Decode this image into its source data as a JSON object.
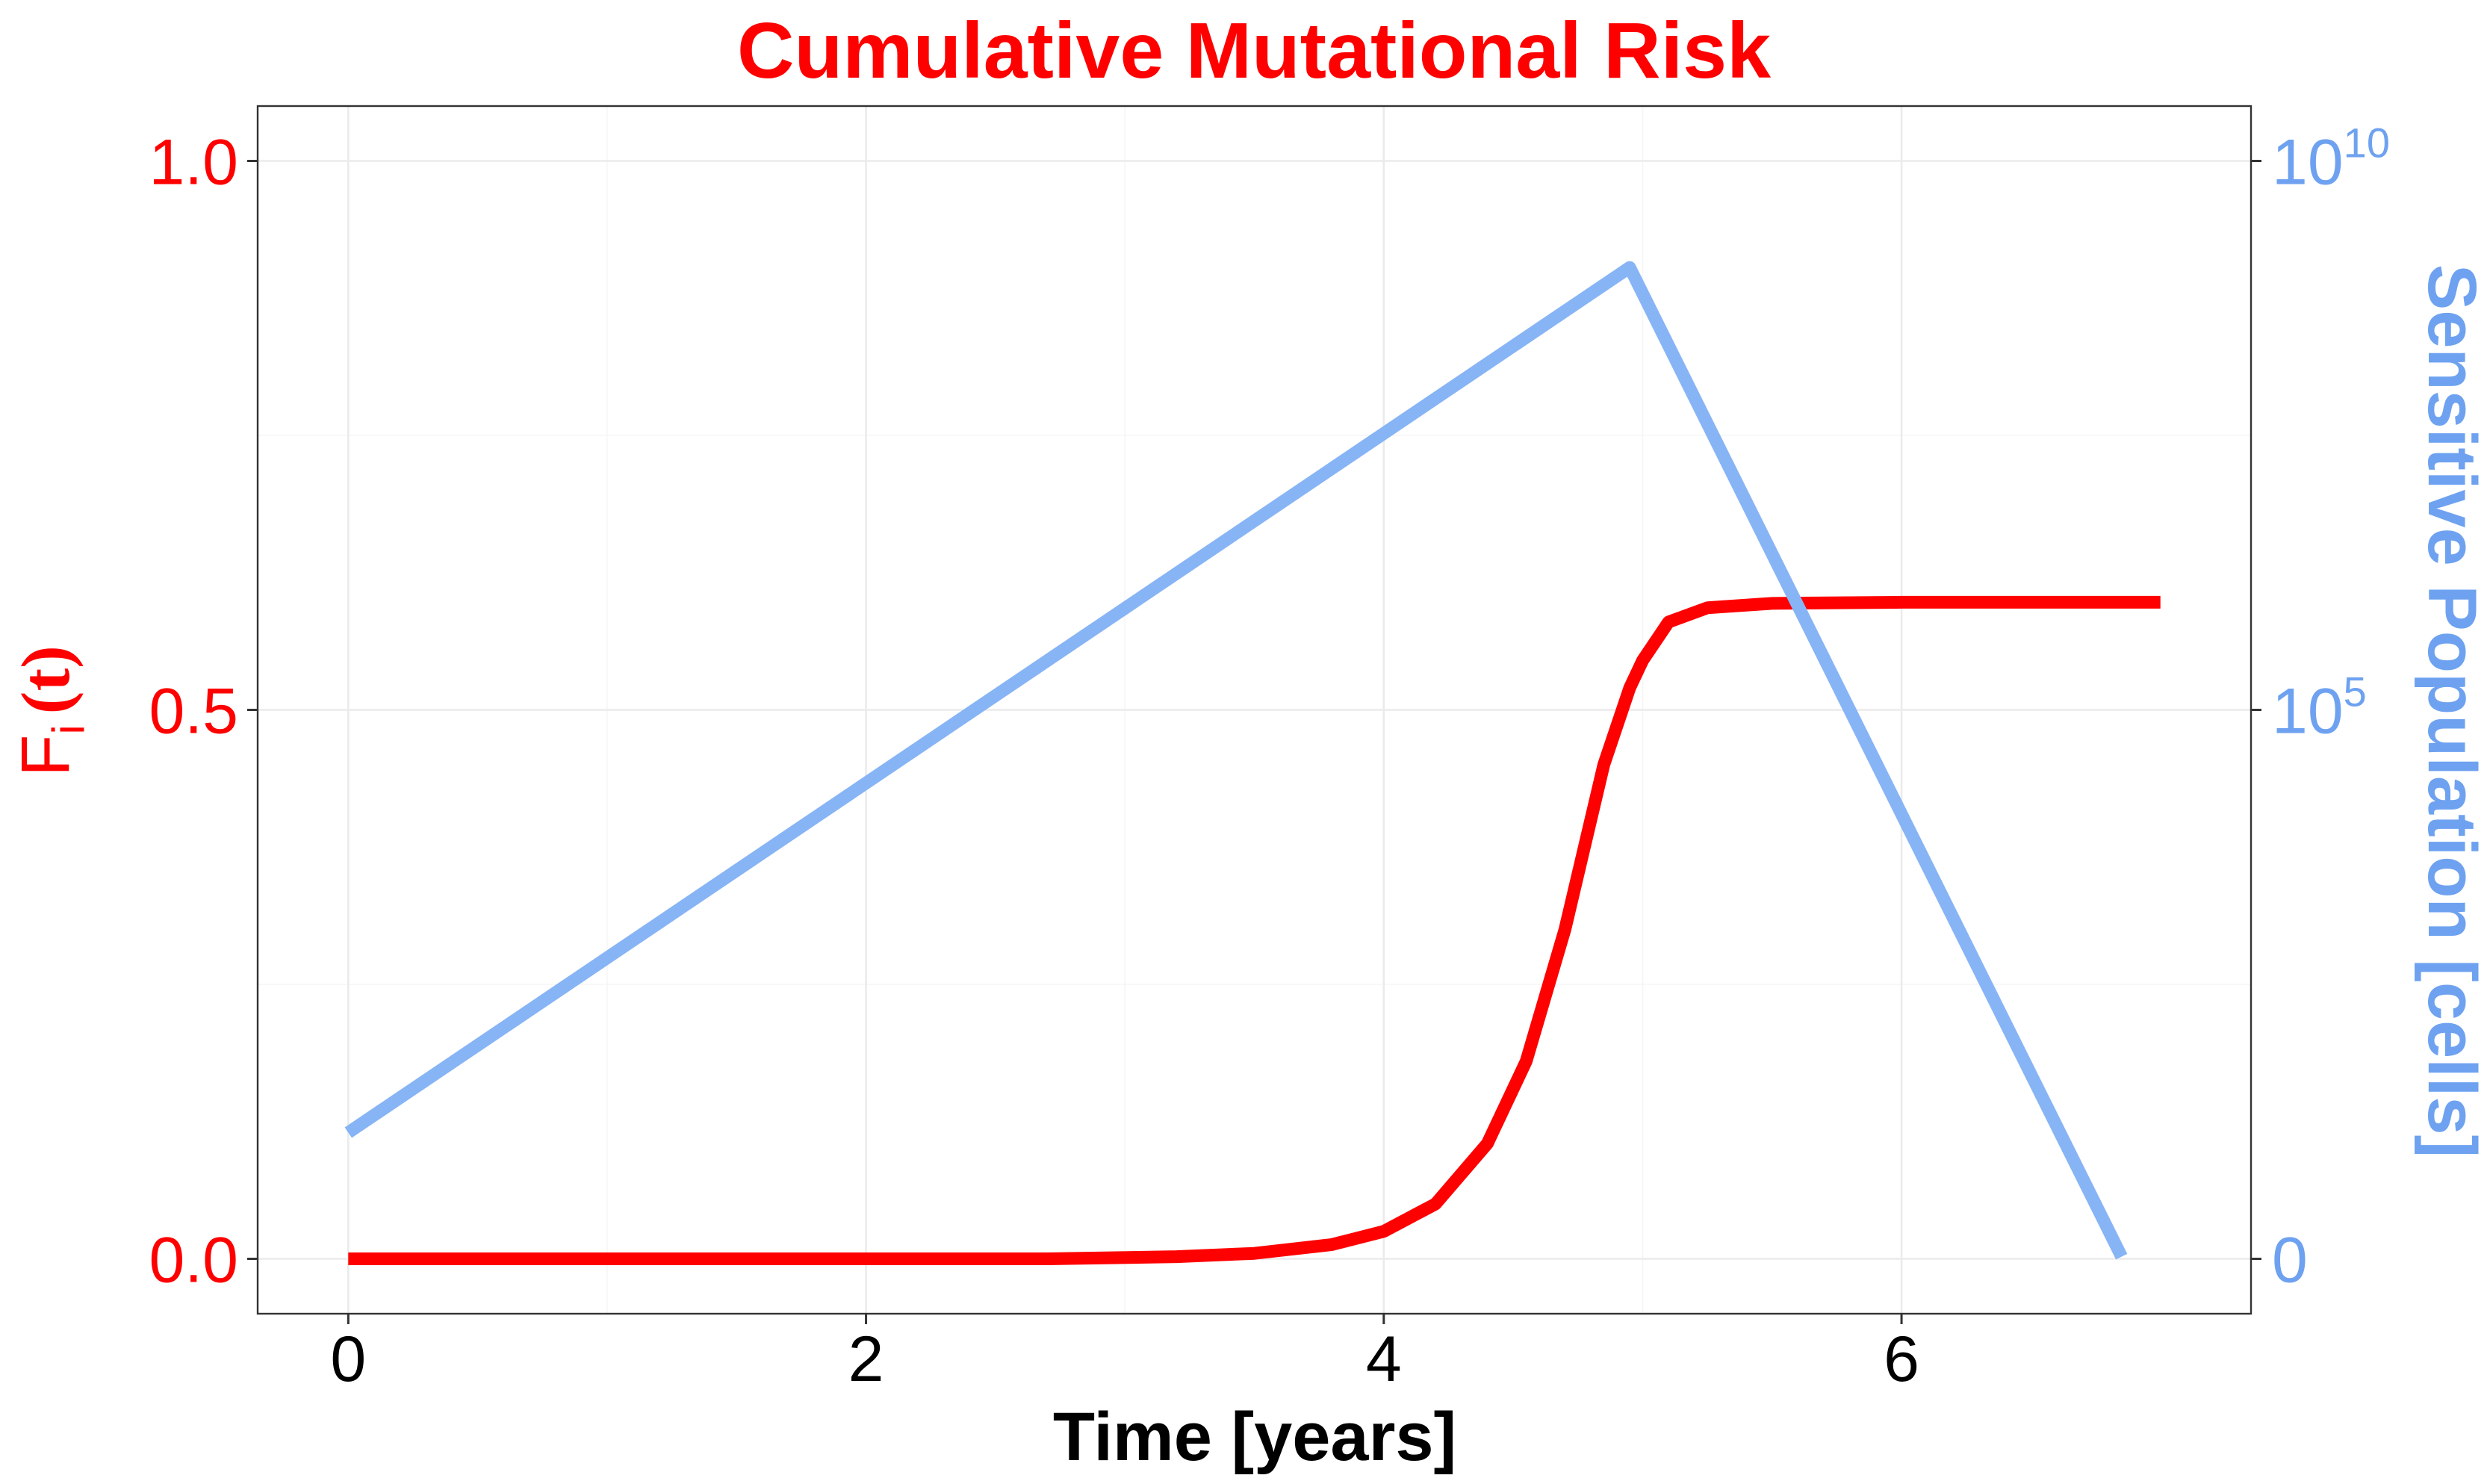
{
  "colors": {
    "risk": "#ff0000",
    "population": "#87b4f5",
    "population_axis": "#6ea2f0",
    "x_axis": "#000000"
  },
  "chart_data": {
    "type": "line",
    "title": "Cumulative Mutational Risk",
    "xlabel": "Time [years]",
    "ylabel": {
      "main": "F",
      "subscript": "i",
      "suffix": "(t)"
    },
    "y2label": "Sensitive Population [cells]",
    "xlim": [
      -0.35,
      7.35
    ],
    "ylim": [
      -0.05,
      1.05
    ],
    "y2_scale": "log10(1 + cells), right axis 0 to 10^10 mapped onto left axis 0 to 1",
    "x_ticks": [
      {
        "value": 0,
        "label": "0"
      },
      {
        "value": 2,
        "label": "2"
      },
      {
        "value": 4,
        "label": "4"
      },
      {
        "value": 6,
        "label": "6"
      }
    ],
    "y_ticks": [
      {
        "value": 0.0,
        "label": "0.0"
      },
      {
        "value": 0.5,
        "label": "0.5"
      },
      {
        "value": 1.0,
        "label": "1.0"
      }
    ],
    "y2_ticks": [
      {
        "value": 0,
        "base": "0",
        "exp": ""
      },
      {
        "value": 0.5,
        "base": "10",
        "exp": "5"
      },
      {
        "value": 1.0,
        "base": "10",
        "exp": "10"
      }
    ],
    "grid": true,
    "legend": "none",
    "series": [
      {
        "axis": "left",
        "x": [
          0,
          1,
          2,
          2.7,
          3.2,
          3.5,
          3.8,
          4.0,
          4.2,
          4.4,
          4.55,
          4.7,
          4.85,
          4.95,
          5.0,
          5.1,
          5.25,
          5.5,
          6.0,
          7.0
        ],
        "y": [
          0.0,
          0.0,
          0.0,
          0.0,
          0.002,
          0.005,
          0.013,
          0.025,
          0.05,
          0.105,
          0.18,
          0.3,
          0.45,
          0.52,
          0.545,
          0.58,
          0.593,
          0.597,
          0.598,
          0.598
        ]
      },
      {
        "axis": "right",
        "x": [
          0,
          4.95,
          6.85
        ],
        "y": [
          0.115,
          0.903,
          0.002
        ]
      }
    ]
  }
}
